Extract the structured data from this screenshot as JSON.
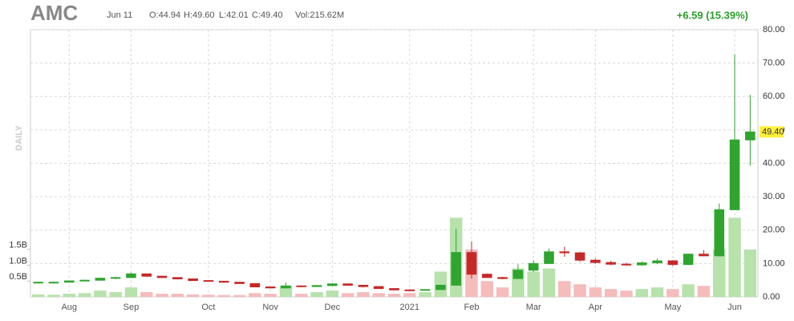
{
  "header": {
    "ticker": "AMC",
    "date": "Jun 11",
    "open": "O:44.94",
    "high": "H:49.60",
    "low": "L:42.01",
    "close": "C:49.40",
    "volume": "Vol:215.62M",
    "change": "+6.59 (15.39%)",
    "timeframe": "DAILY"
  },
  "chart_data": {
    "type": "candlestick",
    "categories": [
      null,
      null,
      "Aug",
      null,
      null,
      null,
      "Sep",
      null,
      null,
      null,
      null,
      "Oct",
      null,
      null,
      null,
      "Nov",
      null,
      null,
      null,
      "Dec",
      null,
      null,
      null,
      null,
      "2021",
      null,
      null,
      null,
      "Feb",
      null,
      null,
      null,
      "Mar",
      null,
      null,
      null,
      "Apr",
      null,
      null,
      null,
      null,
      "May",
      null,
      null,
      null,
      "Jun",
      null
    ],
    "open": [
      4.4,
      4.4,
      4.4,
      4.8,
      5.0,
      5.6,
      5.8,
      6.9,
      6.2,
      5.8,
      5.4,
      4.9,
      4.7,
      4.4,
      4.0,
      3.0,
      2.7,
      3.3,
      3.1,
      3.4,
      3.9,
      3.5,
      3.1,
      2.5,
      2.1,
      2.0,
      2.2,
      3.5,
      13.3,
      6.8,
      5.8,
      5.5,
      8.0,
      10.0,
      13.5,
      13.2,
      11.0,
      10.3,
      9.8,
      9.6,
      10.2,
      10.8,
      9.7,
      12.8,
      12.3,
      26.1,
      47.0
    ],
    "high": [
      4.6,
      4.6,
      4.9,
      5.2,
      5.8,
      6.0,
      7.3,
      7.0,
      6.3,
      5.9,
      5.5,
      5.0,
      4.8,
      4.5,
      4.1,
      3.1,
      4.3,
      3.4,
      3.6,
      4.1,
      4.0,
      3.6,
      3.2,
      2.5,
      2.3,
      2.3,
      3.6,
      20.4,
      16.6,
      7.0,
      6.0,
      9.8,
      11.0,
      14.5,
      15.0,
      13.5,
      11.5,
      10.8,
      10.3,
      10.6,
      11.5,
      11.0,
      13.0,
      14.0,
      28.0,
      72.6,
      60.5
    ],
    "low": [
      4.2,
      4.2,
      4.3,
      4.7,
      4.9,
      5.3,
      5.7,
      6.0,
      5.7,
      5.2,
      4.8,
      4.6,
      4.3,
      3.9,
      2.9,
      2.5,
      2.7,
      2.9,
      3.0,
      3.3,
      3.4,
      2.8,
      2.4,
      2.0,
      1.95,
      1.9,
      2.2,
      3.5,
      5.5,
      5.8,
      5.3,
      5.4,
      7.5,
      9.8,
      12.0,
      10.5,
      10.0,
      9.5,
      9.3,
      9.3,
      9.8,
      9.3,
      9.5,
      12.2,
      12.2,
      26.0,
      39.3
    ],
    "close": [
      4.4,
      4.4,
      4.8,
      5.0,
      5.6,
      5.8,
      6.9,
      6.2,
      5.8,
      5.4,
      4.9,
      4.7,
      4.4,
      4.0,
      3.0,
      2.7,
      3.3,
      3.1,
      3.4,
      3.9,
      3.5,
      3.1,
      2.5,
      2.1,
      2.0,
      2.2,
      3.5,
      13.3,
      6.8,
      5.8,
      5.5,
      8.0,
      10.0,
      13.5,
      13.2,
      11.0,
      10.3,
      9.8,
      9.6,
      10.2,
      10.8,
      9.7,
      12.8,
      12.3,
      26.1,
      47.0,
      49.4
    ],
    "volume": [
      0.08,
      0.07,
      0.1,
      0.12,
      0.2,
      0.15,
      0.3,
      0.15,
      0.1,
      0.1,
      0.08,
      0.07,
      0.06,
      0.06,
      0.12,
      0.1,
      0.35,
      0.1,
      0.15,
      0.2,
      0.12,
      0.15,
      0.12,
      0.1,
      0.12,
      0.15,
      0.8,
      2.5,
      1.5,
      0.5,
      0.3,
      0.9,
      0.8,
      0.9,
      0.5,
      0.4,
      0.3,
      0.25,
      0.2,
      0.25,
      0.3,
      0.25,
      0.4,
      0.35,
      1.5,
      2.5,
      1.5
    ],
    "up_color": "#2fa52f",
    "down_color": "#c62828",
    "up_volume_color": "#b7e2ab",
    "down_volume_color": "#f5bcbc",
    "ylim": [
      0,
      80
    ],
    "yticks": [
      {
        "value": 0,
        "label": "0.00"
      },
      {
        "value": 10,
        "label": "10.00"
      },
      {
        "value": 20,
        "label": "20.00"
      },
      {
        "value": 30,
        "label": "30.00"
      },
      {
        "value": 40,
        "label": "40.00"
      },
      {
        "value": 50,
        "label": "50.00"
      },
      {
        "value": 60,
        "label": "60.00"
      },
      {
        "value": 70,
        "label": "70.00"
      },
      {
        "value": 80,
        "label": "80.00"
      }
    ],
    "volume_ylim": [
      0,
      8.44
    ],
    "volume_ticks": [
      {
        "value": 0.5,
        "label": "0.5B"
      },
      {
        "value": 1.0,
        "label": "1.0B"
      },
      {
        "value": 1.5,
        "label": "1.5B"
      }
    ],
    "last_price": {
      "value": 49.4,
      "label": "49.40"
    },
    "grid": true
  }
}
